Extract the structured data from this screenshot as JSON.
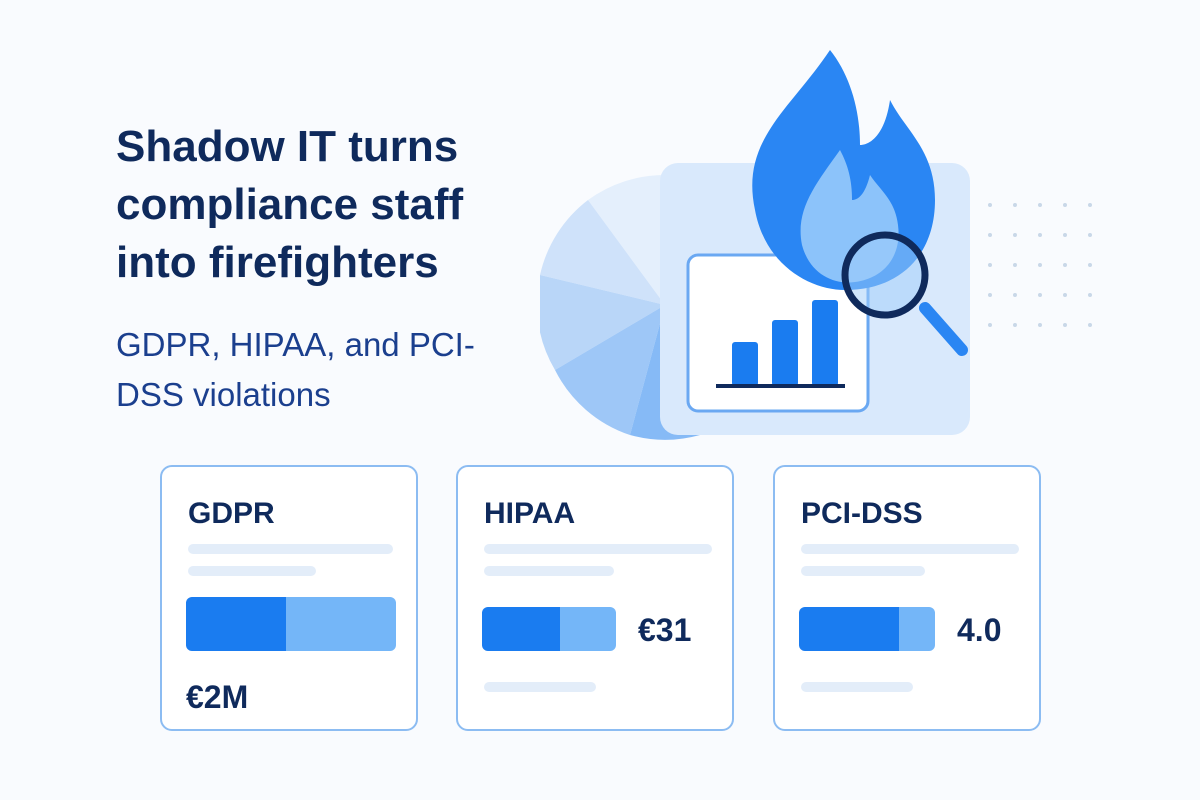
{
  "headline": {
    "title": "Shadow IT turns compliance staff into firefighters",
    "subtitle": "GDPR, HIPAA, and PCI-DSS violations"
  },
  "cards": [
    {
      "title": "GDPR",
      "value": "€2M"
    },
    {
      "title": "HIPAA",
      "value": "€31"
    },
    {
      "title": "PCI-DSS",
      "value": "4.0"
    }
  ]
}
